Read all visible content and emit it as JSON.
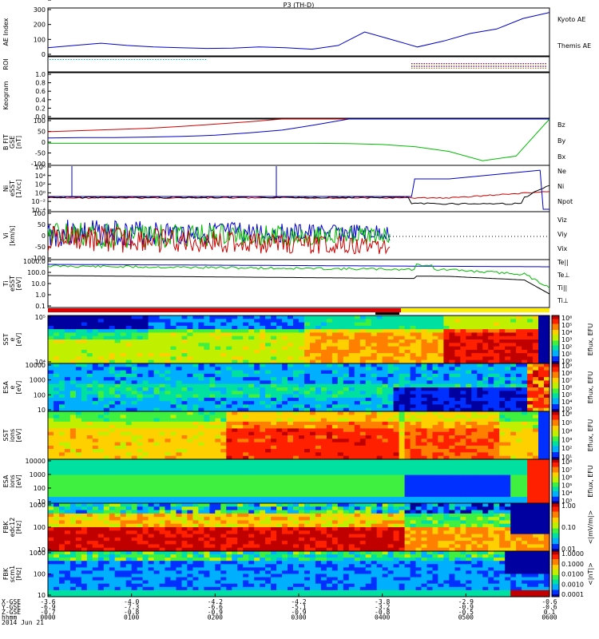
{
  "title": "P3 (TH-D)",
  "colors": {
    "kyoto": "#0000cc",
    "themis": "#000000",
    "red": "#cc0000",
    "green": "#00bb00",
    "blue": "#0000cc",
    "cyan": "#00aaaa",
    "yellow": "#ffee00"
  },
  "chart_data": [
    {
      "name": "AE Index",
      "type": "line",
      "ylabel": "AE Index",
      "yticks": [
        "0",
        "100",
        "200",
        "300"
      ],
      "ylim": [
        0,
        320
      ],
      "x": [
        "0000",
        "0020",
        "0040",
        "0100",
        "0120",
        "0140",
        "0200",
        "0220",
        "0240",
        "0300",
        "0320",
        "0340",
        "0400",
        "0410",
        "0420",
        "0440",
        "0500",
        "0520",
        "0540",
        "0600"
      ],
      "series": [
        {
          "name": "Kyoto AE",
          "color": "blue",
          "values": [
            55,
            70,
            85,
            70,
            60,
            55,
            50,
            52,
            60,
            55,
            45,
            70,
            160,
            110,
            60,
            100,
            150,
            180,
            250,
            290
          ]
        },
        {
          "name": "Themis AE",
          "color": "black",
          "values": [
            40,
            60,
            80,
            85,
            70,
            50,
            45,
            50,
            55,
            50,
            40,
            60,
            130,
            150,
            70,
            60,
            120,
            170,
            220,
            270
          ]
        }
      ]
    },
    {
      "name": "ROI",
      "type": "line",
      "ylabel": "ROI"
    },
    {
      "name": "Keogram",
      "type": "line",
      "ylabel": "Keogram",
      "yticks": [
        "0.0",
        "0.2",
        "0.4",
        "0.6",
        "0.8",
        "1.0"
      ],
      "ylim": [
        0,
        1
      ]
    },
    {
      "name": "B FIT",
      "type": "line",
      "ylabel": "B FIT",
      "sublabel": "GSE",
      "unit": "[nT]",
      "yticks": [
        "-100",
        "-50",
        "0",
        "50",
        "100"
      ],
      "ylim": [
        -100,
        100
      ],
      "x": [
        "0000",
        "0040",
        "0120",
        "0200",
        "0240",
        "0320",
        "0340",
        "0400",
        "0420",
        "0440",
        "0500",
        "0520",
        "0530",
        "0540",
        "0550",
        "0600"
      ],
      "series": [
        {
          "name": "Bz",
          "color": "red",
          "values": [
            45,
            50,
            55,
            60,
            68,
            78,
            88,
            100,
            100,
            100,
            100,
            100,
            100,
            100,
            100,
            100
          ]
        },
        {
          "name": "By",
          "color": "green",
          "values": [
            -5,
            -5,
            -5,
            -5,
            -5,
            -5,
            -5,
            -5,
            -5,
            -6,
            -10,
            -20,
            -40,
            -80,
            -60,
            100
          ]
        },
        {
          "name": "Bx",
          "color": "blue",
          "values": [
            18,
            20,
            20,
            22,
            25,
            30,
            40,
            52,
            75,
            100,
            100,
            100,
            100,
            100,
            100,
            100
          ]
        }
      ]
    },
    {
      "name": "Ni",
      "type": "line",
      "ylabel": "Ni",
      "sublabel": "eSST",
      "unit": "[1/cc]",
      "yticks": [
        "10⁻⁴",
        "10⁻²",
        "10⁰",
        "10²",
        "10⁴",
        "10⁶"
      ],
      "series": [
        {
          "name": "Ne",
          "color": "red"
        },
        {
          "name": "Ni",
          "color": "black"
        },
        {
          "name": "Npot",
          "color": "blue"
        }
      ]
    },
    {
      "name": "Vi",
      "type": "line",
      "ylabel": "Vi",
      "unit": "[km/s]",
      "yticks": [
        "-100",
        "-50",
        "0",
        "50",
        "100"
      ],
      "ylim": [
        -100,
        100
      ],
      "series": [
        {
          "name": "Viz",
          "color": "red"
        },
        {
          "name": "Viy",
          "color": "green"
        },
        {
          "name": "Vix",
          "color": "blue"
        }
      ]
    },
    {
      "name": "Ti",
      "type": "line",
      "ylabel": "Ti",
      "sublabel": "eSST",
      "unit": "[eV]",
      "yticks": [
        "0.1",
        "1.0",
        "10.0",
        "100.0",
        "1000.0"
      ],
      "series": [
        {
          "name": "Te||",
          "color": "black"
        },
        {
          "name": "Te⊥",
          "color": "red"
        },
        {
          "name": "Ti||",
          "color": "green"
        },
        {
          "name": "Ti⊥",
          "color": "blue"
        }
      ]
    },
    {
      "name": "SST elec",
      "type": "heatmap",
      "ylabel": "SST",
      "sublabel": "e",
      "unit": "[eV]",
      "yticks": [
        "10⁴",
        "10⁵"
      ],
      "cbar_label": "Eflux, EFU",
      "cbar_ticks": [
        "10⁰",
        "10¹",
        "10²",
        "10³",
        "10⁴",
        "10⁵",
        "10⁶"
      ]
    },
    {
      "name": "ESA elec",
      "type": "heatmap",
      "ylabel": "ESA",
      "sublabel": "e",
      "unit": "[eV]",
      "yticks": [
        "10",
        "100",
        "1000",
        "10000"
      ],
      "cbar_label": "Eflux, EFU",
      "cbar_ticks": [
        "10³",
        "10⁴",
        "10⁵",
        "10⁶",
        "10⁷",
        "10⁸",
        "10⁹"
      ]
    },
    {
      "name": "SST ion",
      "type": "heatmap",
      "ylabel": "SST",
      "sublabel": "ions",
      "unit": "[eV]",
      "yticks": [
        "10⁵"
      ],
      "cbar_label": "Eflux, EFU",
      "cbar_ticks": [
        "10¹",
        "10²",
        "10³",
        "10⁴",
        "10⁵",
        "10⁶"
      ]
    },
    {
      "name": "ESA ion",
      "type": "heatmap",
      "ylabel": "ESA",
      "sublabel": "ions",
      "unit": "[eV]",
      "yticks": [
        "10",
        "100",
        "1000",
        "10000"
      ],
      "cbar_label": "Eflux, EFU",
      "cbar_ticks": [
        "10³",
        "10⁴",
        "10⁵",
        "10⁶",
        "10⁷",
        "10⁸"
      ]
    },
    {
      "name": "FBK edc12",
      "type": "heatmap",
      "ylabel": "FBK",
      "sublabel": "edc12",
      "unit": "[Hz]",
      "yticks": [
        "10",
        "100",
        "1000"
      ],
      "cbar_label": "<|mV/m|>",
      "cbar_ticks": [
        "0.01",
        "0.10",
        "1.00"
      ]
    },
    {
      "name": "FBK scm1",
      "type": "heatmap",
      "ylabel": "FBK",
      "sublabel": "scm1",
      "unit": "[Hz]",
      "yticks": [
        "10",
        "100",
        "1000"
      ],
      "cbar_label": "<|nT|>",
      "cbar_ticks": [
        "0.0001",
        "0.0010",
        "0.0100",
        "0.1000",
        "1.0000"
      ]
    }
  ],
  "xaxis": {
    "rows": [
      {
        "label": "X-GSE",
        "values": [
          "-3.6",
          "-4.0",
          "-4.2",
          "-4.2",
          "-3.8",
          "-2.9",
          "-0.6"
        ]
      },
      {
        "label": "Y-GSE",
        "values": [
          "-6.9",
          "-7.3",
          "-6.6",
          "-5.1",
          "-3.2",
          "-0.9",
          "-0.6"
        ]
      },
      {
        "label": "Z-GSE",
        "values": [
          "-0.7",
          "-0.8",
          "-0.9",
          "-0.9",
          "-0.8",
          "-0.5",
          "0.1"
        ]
      },
      {
        "label": "hhmm",
        "values": [
          "0000",
          "0100",
          "0200",
          "0300",
          "0400",
          "0500",
          "0600"
        ]
      }
    ],
    "date": "2014 Jun 21"
  }
}
